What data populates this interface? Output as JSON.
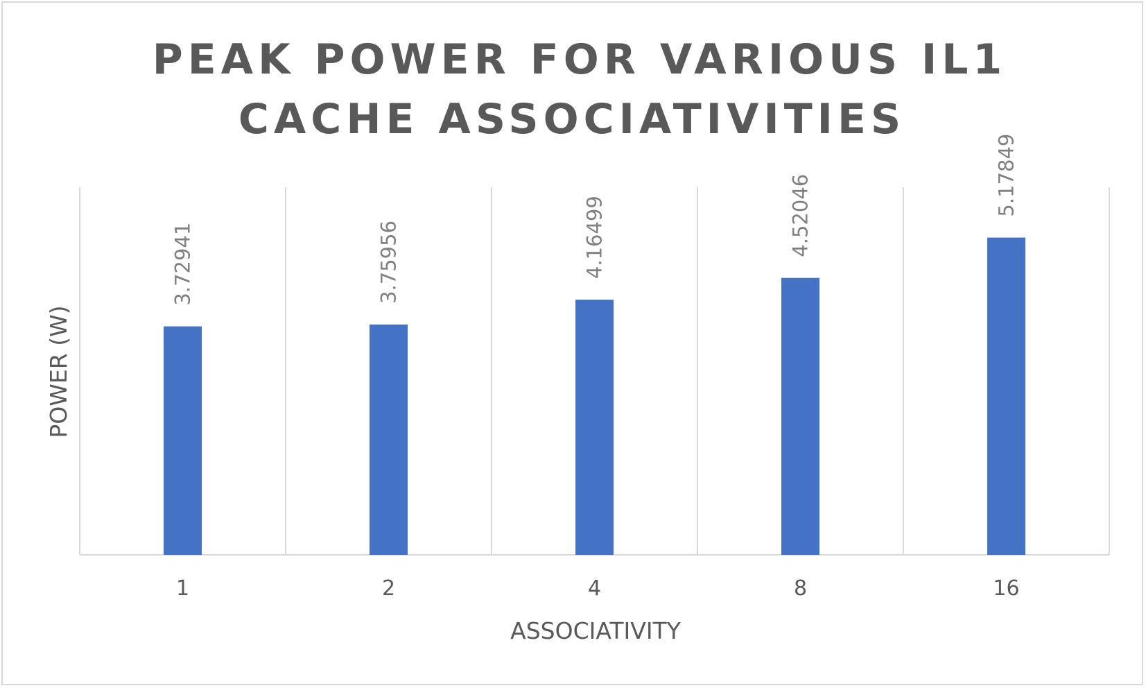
{
  "chart_data": {
    "type": "bar",
    "title_lines": [
      "PEAK POWER FOR VARIOUS IL1",
      "CACHE ASSOCIATIVITIES"
    ],
    "xlabel": "ASSOCIATIVITY",
    "ylabel": "POWER (W)",
    "categories": [
      "1",
      "2",
      "4",
      "8",
      "16"
    ],
    "series": [
      {
        "values": [
          3.72941,
          3.75956,
          4.16499,
          4.52046,
          5.17849
        ],
        "labels": [
          "3.72941",
          "3.75956",
          "4.16499",
          "4.52046",
          "5.17849"
        ],
        "color": "#4472c4"
      }
    ],
    "ylim": [
      0,
      6
    ],
    "grid": "vertical",
    "legend": "none",
    "y_tick_labels_shown": false
  }
}
